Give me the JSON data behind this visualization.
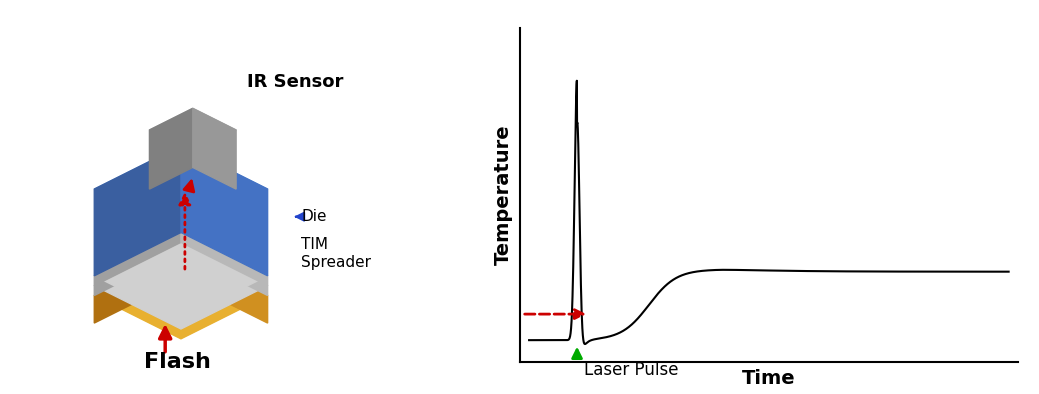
{
  "fig_width": 10.39,
  "fig_height": 3.94,
  "bg_color": "#ffffff",
  "left_panel": {
    "layers": [
      {
        "label": "Die",
        "color": "#4472c4",
        "zorder": 2
      },
      {
        "label": "TIM",
        "color": "#b0b0b0",
        "zorder": 3
      },
      {
        "label": "Spreader",
        "color": "#c8a020",
        "zorder": 1
      }
    ],
    "ir_sensor_color": "#909090",
    "flash_label": "Flash",
    "ir_label": "IR Sensor",
    "die_label": "Die",
    "tim_label": "TIM",
    "spreader_label": "Spreader",
    "flash_arrow_color": "#cc0000",
    "ir_arrow_color": "#cc0000",
    "red_dash_color": "#cc0000",
    "blue_arrow_color": "#2244cc"
  },
  "right_panel": {
    "xlabel": "Time",
    "ylabel": "Temperature",
    "laser_label": "Laser Pulse",
    "laser_arrow_color": "#00aa00",
    "red_arrow_color": "#cc0000",
    "curve_color": "#000000",
    "axis_color": "#000000"
  }
}
